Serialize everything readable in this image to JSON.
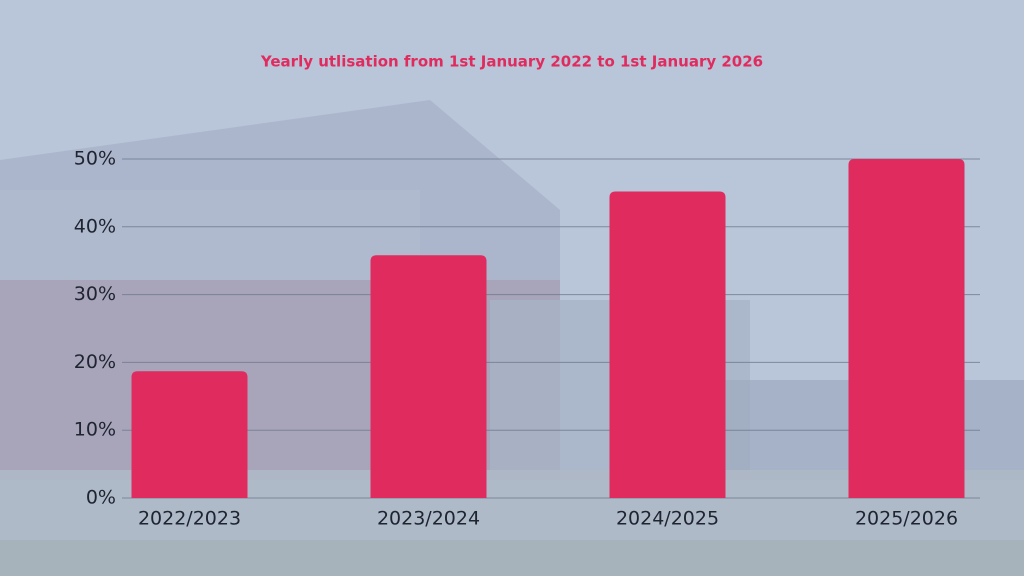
{
  "chart_data": {
    "type": "bar",
    "title": "Yearly utlisation from 1st January 2022 to 1st January 2026",
    "categories": [
      "2022/2023",
      "2023/2024",
      "2024/2025",
      "2025/2026"
    ],
    "values": [
      18.7,
      35.8,
      45.2,
      50
    ],
    "color": "#e02b5e",
    "ylim": [
      0,
      50
    ],
    "yticks": [
      {
        "value": 0,
        "label": "0%"
      },
      {
        "value": 10,
        "label": "10%"
      },
      {
        "value": 20,
        "label": "20%"
      },
      {
        "value": 30,
        "label": "30%"
      },
      {
        "value": 40,
        "label": "40%"
      },
      {
        "value": 50,
        "label": "50%"
      }
    ],
    "grid": true
  }
}
